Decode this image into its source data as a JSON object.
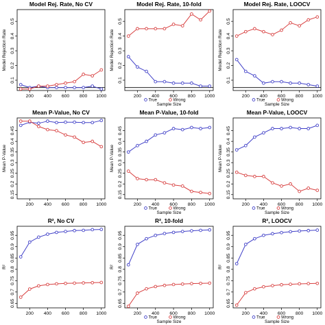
{
  "chart_data": [
    {
      "type": "line",
      "title": "Model Rej. Rate, No CV",
      "xlabel": "",
      "ylabel": "Model Rejection Rate",
      "x": [
        100,
        200,
        300,
        400,
        500,
        600,
        700,
        800,
        900,
        1000
      ],
      "xticks": [
        200,
        400,
        600,
        800,
        1000
      ],
      "xlim": [
        60,
        1040
      ],
      "ylim": [
        0.03,
        0.58
      ],
      "yticks": [
        0.1,
        0.2,
        0.3,
        0.4,
        0.5
      ],
      "hline": 0.05,
      "series": [
        {
          "name": "True",
          "color": "#4040c8",
          "values": [
            0.07,
            0.05,
            0.06,
            0.05,
            0.05,
            0.05,
            0.05,
            0.05,
            0.06,
            0.04
          ]
        },
        {
          "name": "Wrong",
          "color": "#d84040",
          "values": [
            0.04,
            0.04,
            0.06,
            0.06,
            0.07,
            0.08,
            0.09,
            0.14,
            0.13,
            0.17
          ]
        }
      ],
      "legend": null
    },
    {
      "type": "line",
      "title": "Model Rej. Rate, 10-fold",
      "xlabel": "Sample Size",
      "ylabel": "Model Rejection Rate",
      "x": [
        100,
        200,
        300,
        400,
        500,
        600,
        700,
        800,
        900,
        1000
      ],
      "xticks": [
        200,
        400,
        600,
        800,
        1000
      ],
      "xlim": [
        60,
        1040
      ],
      "ylim": [
        0.03,
        0.58
      ],
      "yticks": [
        0.1,
        0.2,
        0.3,
        0.4,
        0.5
      ],
      "hline": 0.05,
      "series": [
        {
          "name": "True",
          "color": "#4040c8",
          "values": [
            0.26,
            0.19,
            0.16,
            0.09,
            0.09,
            0.08,
            0.08,
            0.08,
            0.06,
            0.06
          ]
        },
        {
          "name": "Wrong",
          "color": "#d84040",
          "values": [
            0.4,
            0.45,
            0.45,
            0.45,
            0.45,
            0.48,
            0.47,
            0.55,
            0.51,
            0.57
          ]
        }
      ],
      "legend": {
        "position": "bottom",
        "entries": [
          "True",
          "Wrong"
        ]
      }
    },
    {
      "type": "line",
      "title": "Model Rej. Rate, LOOCV",
      "xlabel": "Sample Size",
      "ylabel": "Model Rejection Rate",
      "x": [
        100,
        200,
        300,
        400,
        500,
        600,
        700,
        800,
        900,
        1000
      ],
      "xticks": [
        200,
        400,
        600,
        800,
        1000
      ],
      "xlim": [
        60,
        1040
      ],
      "ylim": [
        0.03,
        0.58
      ],
      "yticks": [
        0.1,
        0.2,
        0.3,
        0.4,
        0.5
      ],
      "hline": 0.05,
      "series": [
        {
          "name": "True",
          "color": "#4040c8",
          "values": [
            0.24,
            0.16,
            0.13,
            0.08,
            0.09,
            0.09,
            0.08,
            0.08,
            0.07,
            0.06
          ]
        },
        {
          "name": "Wrong",
          "color": "#d84040",
          "values": [
            0.4,
            0.43,
            0.45,
            0.43,
            0.41,
            0.44,
            0.49,
            0.47,
            0.51,
            0.53
          ]
        }
      ],
      "legend": {
        "position": "bottom",
        "entries": [
          "True",
          "Wrong"
        ]
      }
    },
    {
      "type": "line",
      "title": "Mean P-Value, No CV",
      "xlabel": "",
      "ylabel": "Mean P-Value",
      "x": [
        100,
        200,
        300,
        400,
        500,
        600,
        700,
        800,
        900,
        1000
      ],
      "xticks": [
        200,
        400,
        600,
        800,
        1000
      ],
      "xlim": [
        60,
        1040
      ],
      "ylim": [
        0.13,
        0.51
      ],
      "yticks": [
        0.15,
        0.2,
        0.25,
        0.3,
        0.35,
        0.4,
        0.45
      ],
      "series": [
        {
          "name": "True",
          "color": "#4040c8",
          "values": [
            0.475,
            0.49,
            0.485,
            0.495,
            0.488,
            0.49,
            0.49,
            0.488,
            0.488,
            0.498
          ]
        },
        {
          "name": "Wrong",
          "color": "#d84040",
          "values": [
            0.495,
            0.495,
            0.47,
            0.455,
            0.45,
            0.43,
            0.42,
            0.395,
            0.4,
            0.375
          ]
        }
      ],
      "legend": null
    },
    {
      "type": "line",
      "title": "Mean P-Value, 10-fold",
      "xlabel": "Sample Size",
      "ylabel": "Mean P-Value",
      "x": [
        100,
        200,
        300,
        400,
        500,
        600,
        700,
        800,
        900,
        1000
      ],
      "xticks": [
        200,
        400,
        600,
        800,
        1000
      ],
      "xlim": [
        60,
        1040
      ],
      "ylim": [
        0.13,
        0.51
      ],
      "yticks": [
        0.15,
        0.2,
        0.25,
        0.3,
        0.35,
        0.4,
        0.45
      ],
      "series": [
        {
          "name": "True",
          "color": "#4040c8",
          "values": [
            0.35,
            0.38,
            0.4,
            0.43,
            0.44,
            0.46,
            0.455,
            0.465,
            0.46,
            0.465
          ]
        },
        {
          "name": "Wrong",
          "color": "#d84040",
          "values": [
            0.26,
            0.225,
            0.22,
            0.22,
            0.205,
            0.195,
            0.19,
            0.165,
            0.16,
            0.155
          ]
        }
      ],
      "legend": {
        "position": "bottom",
        "entries": [
          "True",
          "Wrong"
        ]
      }
    },
    {
      "type": "line",
      "title": "Mean P-Value, LOOCV",
      "xlabel": "Sample Size",
      "ylabel": "Mean P-Value",
      "x": [
        100,
        200,
        300,
        400,
        500,
        600,
        700,
        800,
        900,
        1000
      ],
      "xticks": [
        200,
        400,
        600,
        800,
        1000
      ],
      "xlim": [
        60,
        1040
      ],
      "ylim": [
        0.13,
        0.51
      ],
      "yticks": [
        0.15,
        0.2,
        0.25,
        0.3,
        0.35,
        0.4,
        0.45
      ],
      "series": [
        {
          "name": "True",
          "color": "#4040c8",
          "values": [
            0.36,
            0.38,
            0.42,
            0.44,
            0.46,
            0.46,
            0.465,
            0.46,
            0.46,
            0.475
          ]
        },
        {
          "name": "Wrong",
          "color": "#d84040",
          "values": [
            0.255,
            0.24,
            0.235,
            0.235,
            0.205,
            0.19,
            0.2,
            0.165,
            0.18,
            0.17
          ]
        }
      ],
      "legend": {
        "position": "bottom",
        "entries": [
          "True",
          "Wrong"
        ]
      }
    },
    {
      "type": "line",
      "title": "R², No CV",
      "xlabel": "",
      "ylabel": "R²",
      "x": [
        100,
        200,
        300,
        400,
        500,
        600,
        700,
        800,
        900,
        1000
      ],
      "xticks": [
        200,
        400,
        600,
        800,
        1000
      ],
      "xlim": [
        60,
        1040
      ],
      "ylim": [
        0.63,
        0.99
      ],
      "yticks": [
        0.65,
        0.7,
        0.75,
        0.8,
        0.85,
        0.9,
        0.95
      ],
      "series": [
        {
          "name": "True",
          "color": "#4040c8",
          "values": [
            0.855,
            0.92,
            0.942,
            0.955,
            0.963,
            0.967,
            0.971,
            0.972,
            0.975,
            0.976
          ]
        },
        {
          "name": "Wrong",
          "color": "#d84040",
          "values": [
            0.677,
            0.713,
            0.727,
            0.733,
            0.736,
            0.738,
            0.739,
            0.74,
            0.741,
            0.742
          ]
        }
      ],
      "legend": null
    },
    {
      "type": "line",
      "title": "R², 10-fold",
      "xlabel": "Sample Size",
      "ylabel": "R²",
      "x": [
        100,
        200,
        300,
        400,
        500,
        600,
        700,
        800,
        900,
        1000
      ],
      "xticks": [
        200,
        400,
        600,
        800,
        1000
      ],
      "xlim": [
        60,
        1040
      ],
      "ylim": [
        0.63,
        0.99
      ],
      "yticks": [
        0.65,
        0.7,
        0.75,
        0.8,
        0.85,
        0.9,
        0.95
      ],
      "series": [
        {
          "name": "True",
          "color": "#4040c8",
          "values": [
            0.82,
            0.91,
            0.935,
            0.95,
            0.958,
            0.963,
            0.967,
            0.97,
            0.972,
            0.974
          ]
        },
        {
          "name": "Wrong",
          "color": "#d84040",
          "values": [
            0.637,
            0.695,
            0.714,
            0.724,
            0.729,
            0.733,
            0.735,
            0.737,
            0.738,
            0.739
          ]
        }
      ],
      "legend": {
        "position": "bottom",
        "entries": [
          "True",
          "Wrong"
        ]
      }
    },
    {
      "type": "line",
      "title": "R², LOOCV",
      "xlabel": "Sample Size",
      "ylabel": "R²",
      "x": [
        100,
        200,
        300,
        400,
        500,
        600,
        700,
        800,
        900,
        1000
      ],
      "xticks": [
        200,
        400,
        600,
        800,
        1000
      ],
      "xlim": [
        60,
        1040
      ],
      "ylim": [
        0.63,
        0.99
      ],
      "yticks": [
        0.65,
        0.7,
        0.75,
        0.8,
        0.85,
        0.9,
        0.95
      ],
      "series": [
        {
          "name": "True",
          "color": "#4040c8",
          "values": [
            0.825,
            0.91,
            0.935,
            0.95,
            0.957,
            0.962,
            0.966,
            0.969,
            0.971,
            0.973
          ]
        },
        {
          "name": "Wrong",
          "color": "#d84040",
          "values": [
            0.642,
            0.697,
            0.714,
            0.723,
            0.728,
            0.732,
            0.734,
            0.736,
            0.737,
            0.738
          ]
        }
      ],
      "legend": {
        "position": "bottom",
        "entries": [
          "True",
          "Wrong"
        ]
      }
    }
  ]
}
